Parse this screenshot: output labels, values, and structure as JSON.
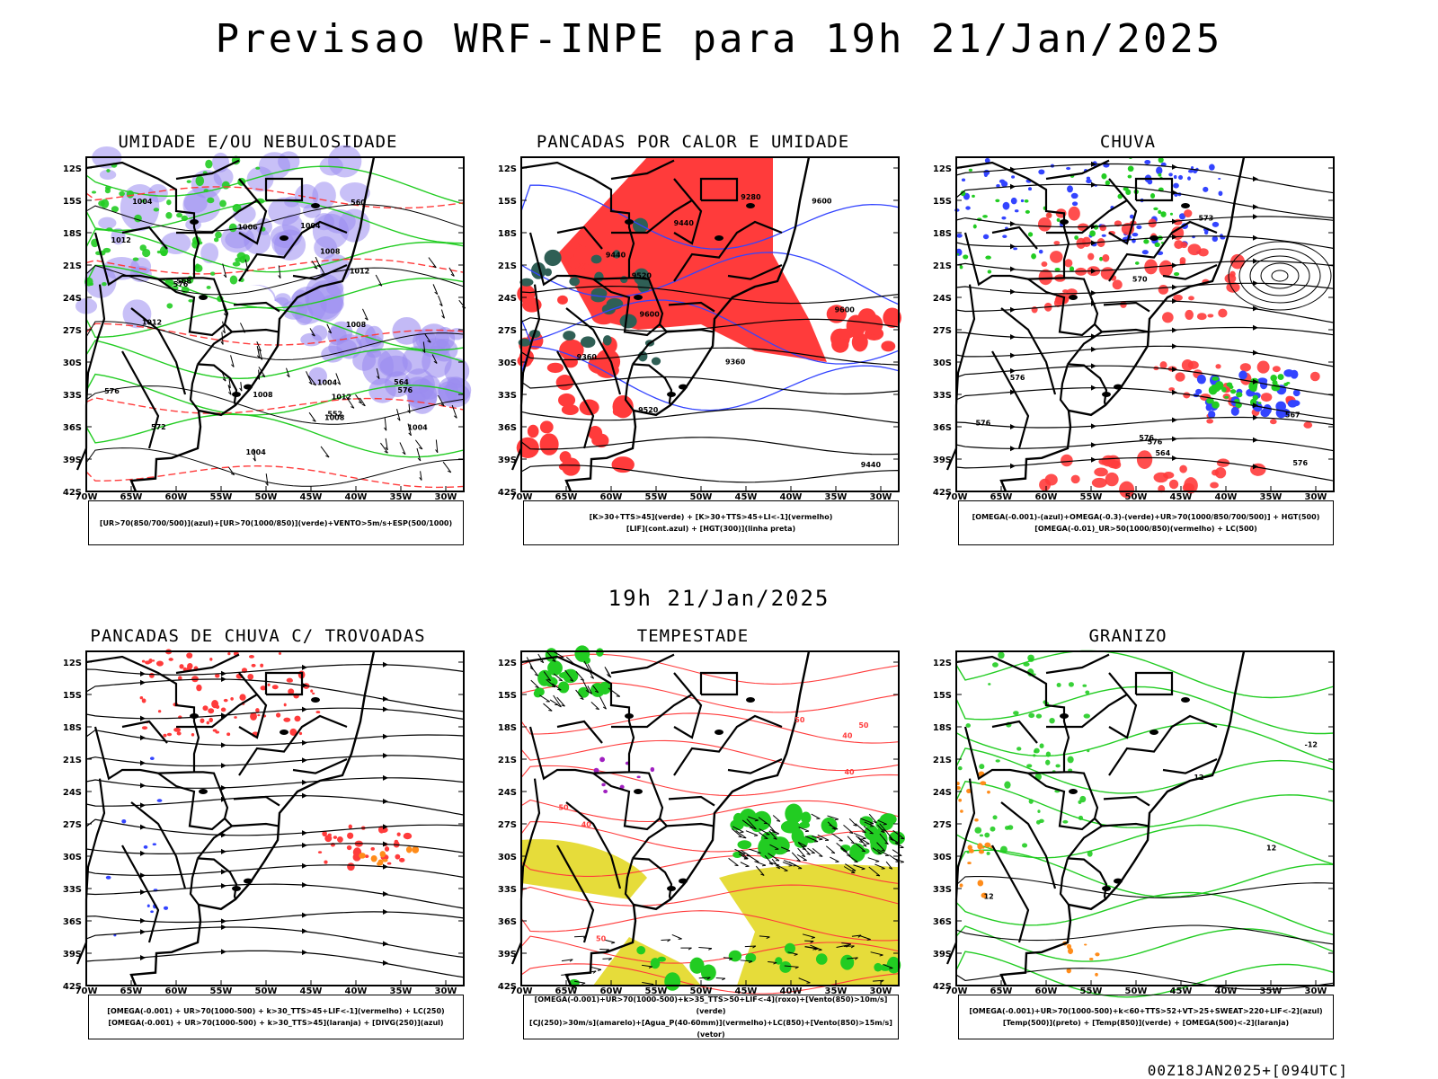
{
  "header": {
    "title": "Previsao WRF-INPE  para 19h 21/Jan/2025",
    "mid_title": "19h 21/Jan/2025",
    "footer": "00Z18JAN2025+[094UTC]"
  },
  "axes": {
    "lat_labels": [
      "12S",
      "15S",
      "18S",
      "21S",
      "24S",
      "27S",
      "30S",
      "33S",
      "36S",
      "39S",
      "42S"
    ],
    "lon_labels": [
      "70W",
      "65W",
      "60W",
      "55W",
      "50W",
      "45W",
      "40W",
      "35W",
      "30W"
    ]
  },
  "colors": {
    "blue": "#3344ff",
    "green": "#22cc22",
    "red": "#ff3b3b",
    "purple": "#9b8cf0",
    "yellow": "#e6dc3a",
    "orange": "#ff8c1a",
    "darkteal": "#2f5f55",
    "violet": "#a020c0"
  },
  "panels": [
    {
      "title": "UMIDADE E/OU NEBULOSIDADE",
      "legend": [
        "[UR>70(850/700/500)](azul)+[UR>70(1000/850)](verde)+VENTO>5m/s+ESP(500/1000)"
      ],
      "labels": [
        "1012",
        "1008",
        "1008",
        "1004",
        "1004",
        "1008",
        "1004",
        "1012",
        "1012",
        "1008",
        "1004",
        "1004",
        "576",
        "576",
        "572",
        "568",
        "564",
        "560",
        "552",
        "576",
        "1006",
        "1012"
      ]
    },
    {
      "title": "PANCADAS POR CALOR E UMIDADE",
      "legend": [
        "[K>30+TTS>45](verde) + [K>30+TTS>45+LI<-1](vermelho)",
        "[LIF](cont.azul) + [HGT(300)](linha preta)"
      ],
      "labels": [
        "9600",
        "9600",
        "9600",
        "9520",
        "9520",
        "9440",
        "9440",
        "9440",
        "9360",
        "9360",
        "9280"
      ]
    },
    {
      "title": "CHUVA",
      "legend": [
        "[OMEGA(-0.001)-(azul)+OMEGA(-0.3)-(verde)+UR>70(1000/850/700/500)] + HGT(500)",
        "[OMEGA(-0.01)_UR>50(1000/850)(vermelho) + LC(500)"
      ],
      "labels": [
        "576",
        "576",
        "576",
        "576",
        "573",
        "570",
        "567",
        "564",
        "576"
      ]
    },
    {
      "title": "PANCADAS DE CHUVA C/ TROVOADAS",
      "legend": [
        "[OMEGA(-0.001) + UR>70(1000-500) + k>30_TTS>45+LIF<-1](vermelho) + LC(250)",
        "[OMEGA(-0.001) + UR>70(1000-500) + k>30_TTS>45](laranja) + [DIVG(250)](azul)"
      ],
      "labels": []
    },
    {
      "title": "TEMPESTADE",
      "legend": [
        "[OMEGA(-0.001)+UR>70(1000-500)+k>35_TTS>50+LIF<-4](roxo)+[Vento(850)>10m/s](verde)",
        "[CJ(250)>30m/s](amarelo)+[Agua_P(40-60mm)](vermelho)+LC(850)+[Vento(850)>15m/s](vetor)"
      ],
      "labels": [
        "50",
        "50",
        "50",
        "40",
        "40",
        "50",
        "40"
      ]
    },
    {
      "title": "GRANIZO",
      "legend": [
        "[OMEGA(-0.001)+UR>70(1000-500)+k<60+TTS>52+VT>25+SWEAT>220+LIF<-2](azul)",
        "[Temp(500)](preto) + [Temp(850)](verde) + [OMEGA(500)<-2](laranja)"
      ],
      "labels": [
        "12",
        "12",
        "12",
        "-12"
      ]
    }
  ]
}
